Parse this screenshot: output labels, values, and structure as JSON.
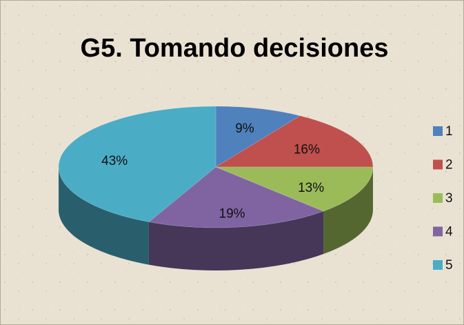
{
  "chart_data": {
    "type": "pie3d",
    "title": "G5. Tomando decisiones",
    "categories": [
      "1",
      "2",
      "3",
      "4",
      "5"
    ],
    "values": [
      9,
      16,
      13,
      19,
      43
    ],
    "value_labels": [
      "9%",
      "16%",
      "13%",
      "19%",
      "43%"
    ],
    "colors": [
      "#4f81bd",
      "#c0504d",
      "#9bbb59",
      "#8064a2",
      "#4bacc6"
    ],
    "legend": "right"
  }
}
